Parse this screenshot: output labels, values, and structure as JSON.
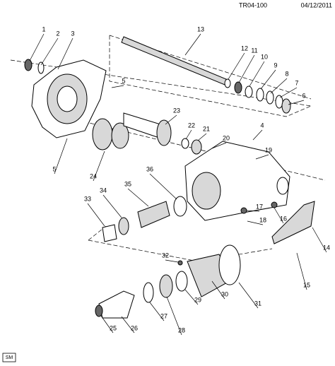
{
  "header": {
    "code": "TR04-100",
    "date": "04/12/2011"
  },
  "callouts": [
    "1",
    "2",
    "3",
    "4",
    "5",
    "5",
    "6",
    "7",
    "8",
    "9",
    "10",
    "11",
    "12",
    "13",
    "14",
    "15",
    "16",
    "17",
    "18",
    "19",
    "20",
    "21",
    "22",
    "23",
    "24",
    "25",
    "26",
    "27",
    "28",
    "29",
    "30",
    "31",
    "32",
    "33",
    "34",
    "35",
    "36"
  ],
  "footer": {
    "badge": "SM"
  }
}
